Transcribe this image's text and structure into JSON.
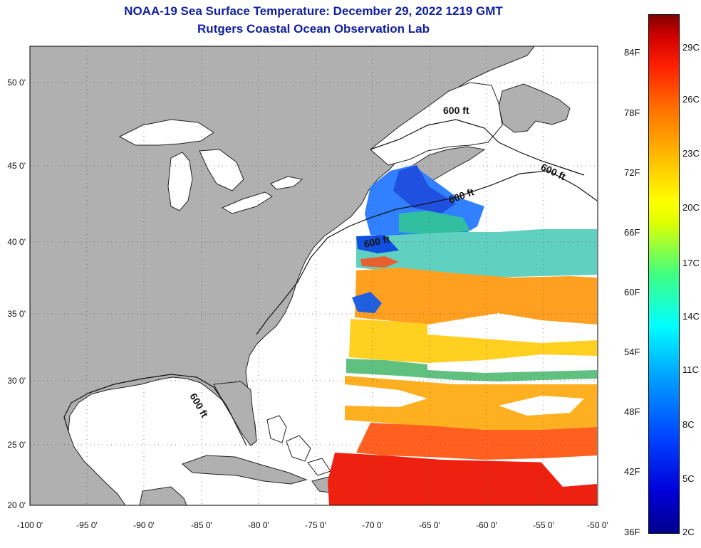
{
  "header": {
    "title": "NOAA-19 Sea Surface Temperature:  December 29, 2022 1219 GMT",
    "subtitle": "Rutgers Coastal Ocean Observation Lab"
  },
  "map": {
    "lon_labels": [
      "-100 0'",
      "-95 0'",
      "-90 0'",
      "-85 0'",
      "-80 0'",
      "-75 0'",
      "-70 0'",
      "-65 0'",
      "-60 0'",
      "-55 0'",
      "-50 0'"
    ],
    "lat_labels": [
      "50 0'",
      "45 0'",
      "40 0'",
      "35 0'",
      "30 0'",
      "25 0'",
      "20 0'"
    ],
    "contour_label": "600 ft",
    "colors": {
      "land": "#b0b0b0",
      "ocean": "#ffffff",
      "grid": "#555555"
    }
  },
  "colorbar": {
    "fahrenheit_labels": [
      "84F",
      "78F",
      "72F",
      "66F",
      "60F",
      "54F",
      "48F",
      "42F",
      "36F"
    ],
    "celsius_labels": [
      "29C",
      "26C",
      "23C",
      "20C",
      "17C",
      "14C",
      "11C",
      "8C",
      "5C",
      "2C"
    ]
  }
}
